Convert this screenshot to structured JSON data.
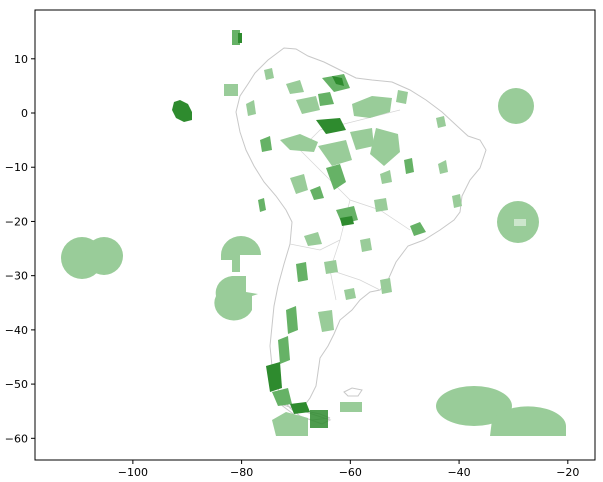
{
  "chart_data": {
    "type": "map",
    "xlim": [
      -118,
      -15
    ],
    "ylim": [
      -64,
      19
    ],
    "x_ticks": [
      {
        "value": -100,
        "label": "−100"
      },
      {
        "value": -80,
        "label": "−80"
      },
      {
        "value": -60,
        "label": "−60"
      },
      {
        "value": -40,
        "label": "−40"
      },
      {
        "value": -20,
        "label": "−20"
      }
    ],
    "y_ticks": [
      {
        "value": 10,
        "label": "10"
      },
      {
        "value": 0,
        "label": "0"
      },
      {
        "value": -10,
        "label": "−10"
      },
      {
        "value": -20,
        "label": "−20"
      },
      {
        "value": -30,
        "label": "−30"
      },
      {
        "value": -40,
        "label": "−40"
      },
      {
        "value": -50,
        "label": "−50"
      },
      {
        "value": -60,
        "label": "−60"
      }
    ],
    "colors": {
      "land_outline": "#bdbdbd",
      "area_light": "#99cc99",
      "area_mid": "#66b266",
      "area_dark": "#2e8b2e"
    },
    "layers": [
      "country-boundaries",
      "protected-areas"
    ]
  }
}
